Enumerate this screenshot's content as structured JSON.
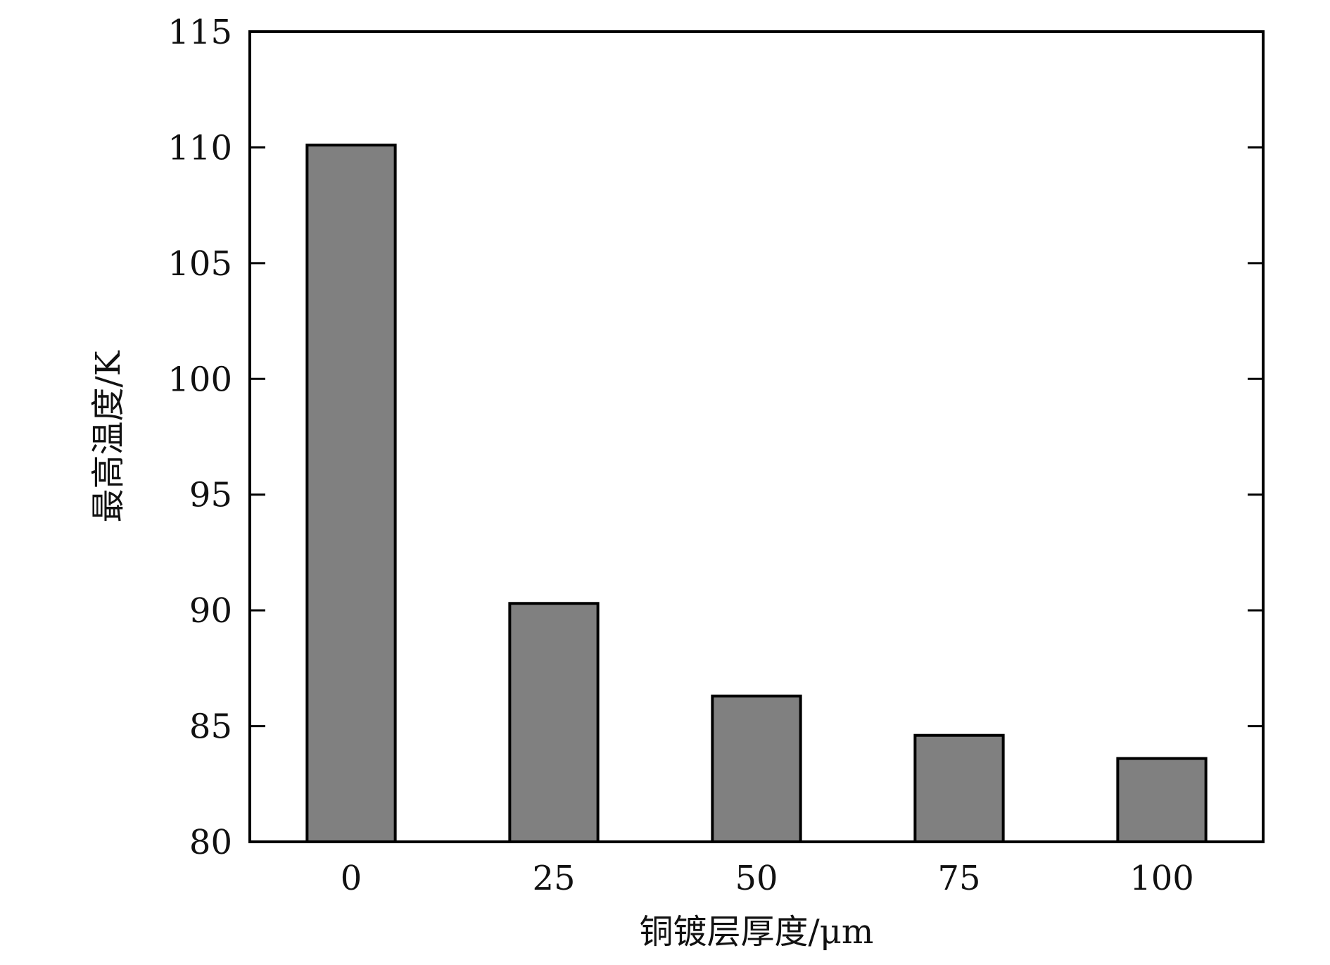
{
  "chart_data": {
    "type": "bar",
    "categories": [
      "0",
      "25",
      "50",
      "75",
      "100"
    ],
    "values": [
      110.1,
      90.3,
      86.3,
      84.6,
      83.6
    ],
    "title": "",
    "xlabel": "铜镀层厚度/μm",
    "ylabel": "最高温度/K",
    "ylim": [
      80,
      115
    ],
    "yticks": [
      80,
      85,
      90,
      95,
      100,
      105,
      110,
      115
    ],
    "grid": false,
    "legend": "none",
    "colors": {
      "bar_fill": "#808080",
      "bar_stroke": "#000000",
      "axis": "#000000"
    }
  }
}
